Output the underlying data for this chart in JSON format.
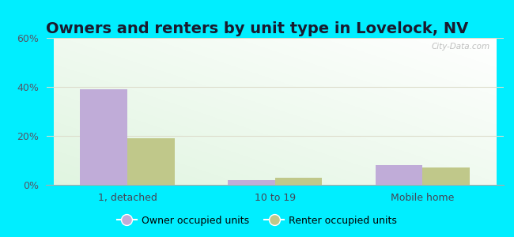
{
  "title": "Owners and renters by unit type in Lovelock, NV",
  "categories": [
    "1, detached",
    "10 to 19",
    "Mobile home"
  ],
  "owner_values": [
    39,
    2,
    8
  ],
  "renter_values": [
    19,
    3,
    7
  ],
  "owner_color": "#c0acd8",
  "renter_color": "#c0c88a",
  "owner_label": "Owner occupied units",
  "renter_label": "Renter occupied units",
  "ylim": [
    0,
    60
  ],
  "yticks": [
    0,
    20,
    40,
    60
  ],
  "ytick_labels": [
    "0%",
    "20%",
    "40%",
    "60%"
  ],
  "background_outer": "#00eeff",
  "bar_width": 0.32,
  "title_fontsize": 14,
  "watermark": "City-Data.com"
}
